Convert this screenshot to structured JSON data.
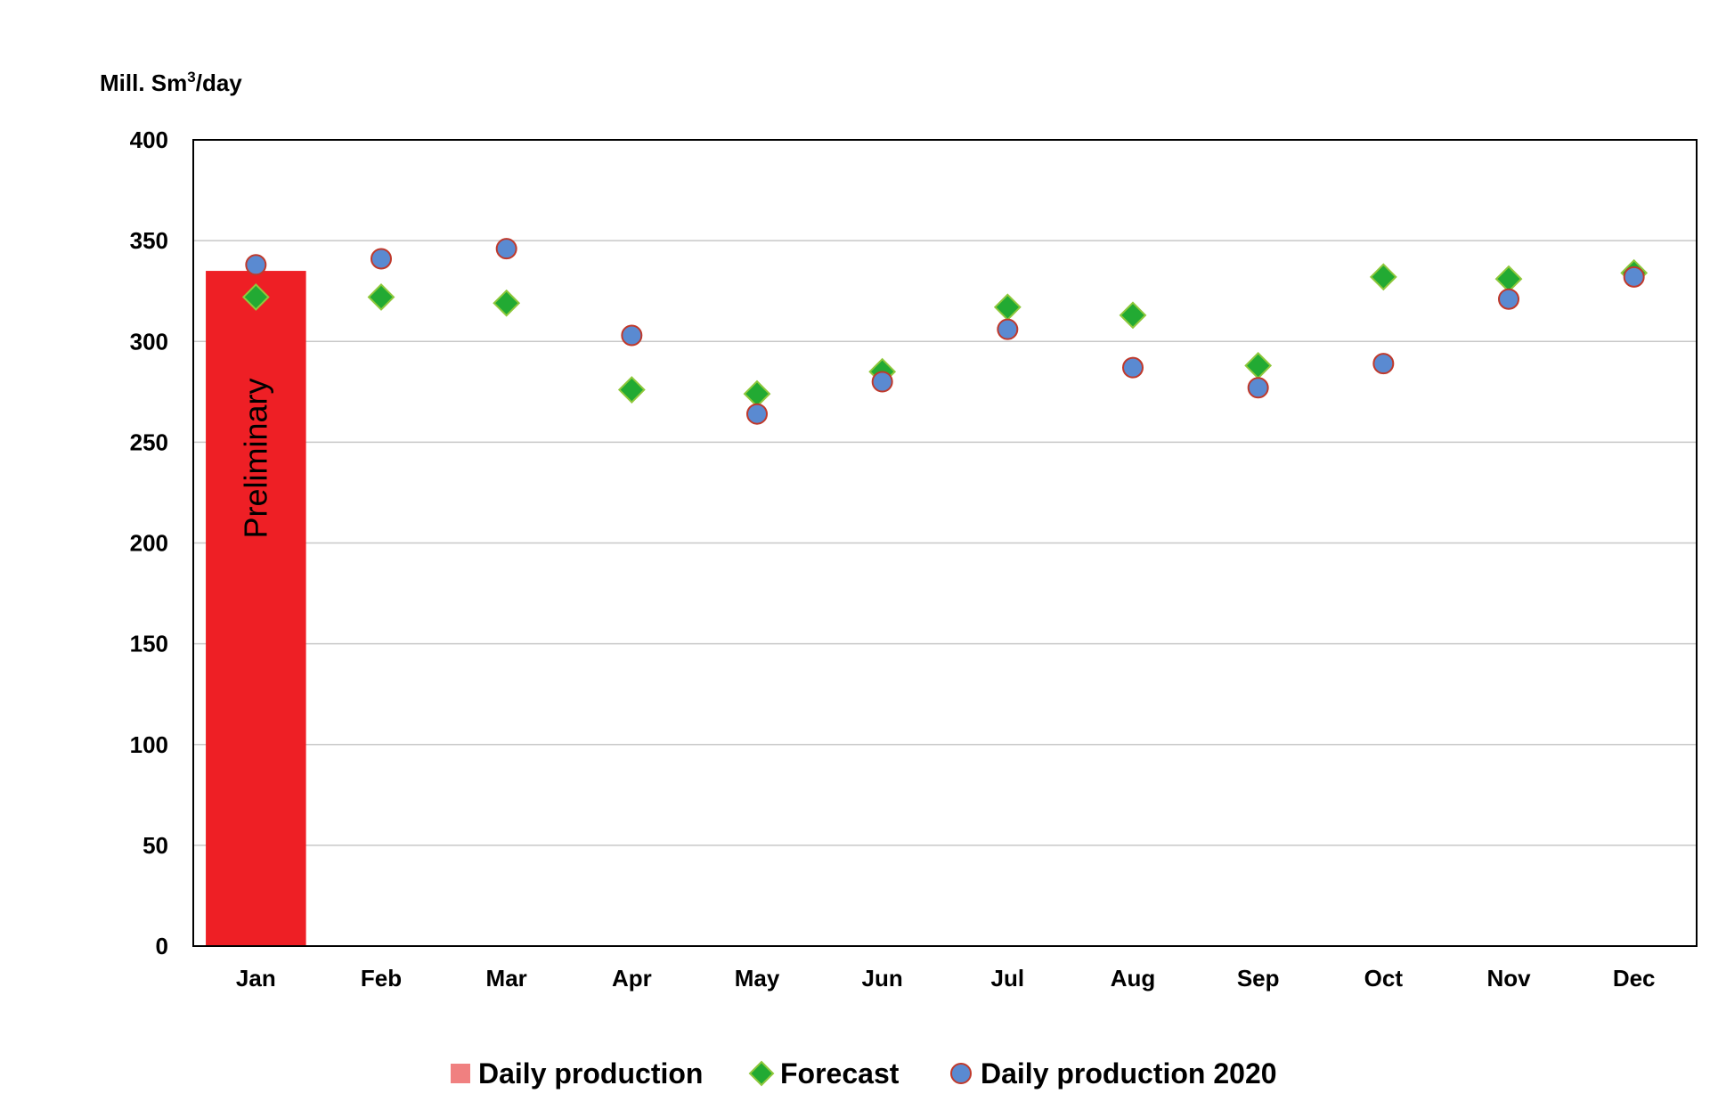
{
  "chart_data": {
    "type": "bar",
    "title": "",
    "xlabel": "",
    "ylabel": "Mill. Sm³/day",
    "ylabel_parts": {
      "base": "Mill. Sm",
      "superscript": "3",
      "suffix": "/day"
    },
    "ylim": [
      0,
      400
    ],
    "y_ticks": [
      0,
      50,
      100,
      150,
      200,
      250,
      300,
      350,
      400
    ],
    "y_tick_labels": [
      "0",
      "50",
      "100",
      "150",
      "200",
      "250",
      "300",
      "350",
      "400"
    ],
    "grid": "horizontal",
    "legend_position": "bottom",
    "categories": [
      "Jan",
      "Feb",
      "Mar",
      "Apr",
      "May",
      "Jun",
      "Jul",
      "Aug",
      "Sep",
      "Oct",
      "Nov",
      "Dec"
    ],
    "series": [
      {
        "name": "Daily production",
        "kind": "bar",
        "color": "#ee1f25",
        "legend_color": "#f08080",
        "values": [
          335,
          null,
          null,
          null,
          null,
          null,
          null,
          null,
          null,
          null,
          null,
          null
        ]
      },
      {
        "name": "Forecast",
        "kind": "diamond",
        "color": "#22aa33",
        "stroke": "#8fc83c",
        "values": [
          322,
          322,
          319,
          276,
          274,
          285,
          317,
          313,
          288,
          332,
          331,
          334
        ]
      },
      {
        "name": "Daily production 2020",
        "kind": "circle",
        "color": "#5a8ad1",
        "stroke": "#c0392b",
        "values": [
          338,
          341,
          346,
          303,
          264,
          280,
          306,
          287,
          277,
          289,
          321,
          332
        ]
      }
    ],
    "annotations": [
      {
        "text": "Preliminary",
        "category": "Jan",
        "series": "Daily production"
      }
    ]
  }
}
